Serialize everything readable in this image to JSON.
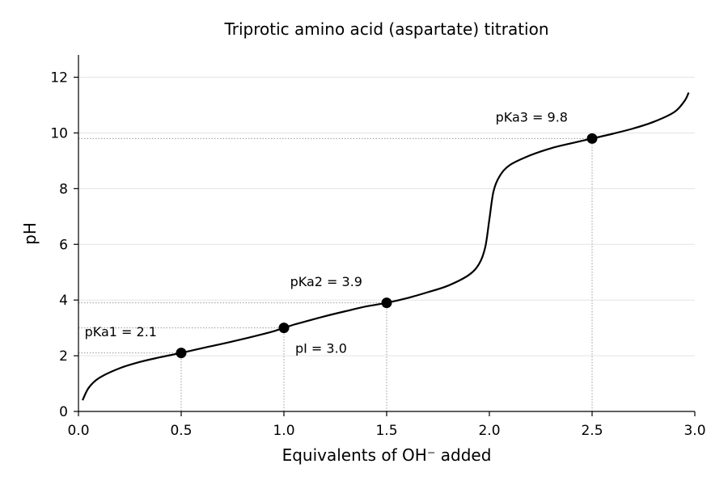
{
  "chart_data": {
    "type": "line",
    "title": "Triprotic amino acid (aspartate) titration",
    "xlabel": "Equivalents of OH⁻ added",
    "ylabel": "pH",
    "xlim": [
      0,
      3
    ],
    "ylim": [
      0,
      12.8
    ],
    "xticks": [
      "0.0",
      "0.5",
      "1.0",
      "1.5",
      "2.0",
      "2.5",
      "3.0"
    ],
    "yticks": [
      "0",
      "2",
      "4",
      "6",
      "8",
      "10",
      "12"
    ],
    "grid": "horizontal",
    "line_color": "#000000",
    "series": [
      {
        "x": [
          0.02,
          0.05,
          0.1,
          0.2,
          0.3,
          0.4,
          0.5,
          0.6,
          0.7,
          0.8,
          0.9,
          0.95,
          1.0,
          1.05,
          1.1,
          1.2,
          1.3,
          1.4,
          1.5,
          1.6,
          1.7,
          1.8,
          1.9,
          1.95,
          1.98,
          2.0,
          2.02,
          2.05,
          2.1,
          2.2,
          2.3,
          2.4,
          2.5,
          2.6,
          2.7,
          2.8,
          2.9,
          2.95,
          2.97
        ],
        "y": [
          0.4,
          0.85,
          1.2,
          1.55,
          1.78,
          1.95,
          2.1,
          2.27,
          2.43,
          2.6,
          2.78,
          2.88,
          3.0,
          3.12,
          3.22,
          3.42,
          3.6,
          3.77,
          3.9,
          4.07,
          4.28,
          4.52,
          4.9,
          5.3,
          5.9,
          6.9,
          7.9,
          8.45,
          8.85,
          9.2,
          9.45,
          9.63,
          9.8,
          9.97,
          10.16,
          10.4,
          10.75,
          11.15,
          11.45
        ]
      }
    ],
    "points": [
      {
        "x": 0.5,
        "y": 2.1
      },
      {
        "x": 1.0,
        "y": 3.0
      },
      {
        "x": 1.5,
        "y": 3.9
      },
      {
        "x": 2.5,
        "y": 9.8
      }
    ],
    "annotations": [
      {
        "text": "pKa1 = 2.1",
        "x": 0.03,
        "y": 2.7
      },
      {
        "text": "pI = 3.0",
        "x": 1.055,
        "y": 2.1
      },
      {
        "text": "pKa2 = 3.9",
        "x": 1.03,
        "y": 4.5
      },
      {
        "text": "pKa3 = 9.8",
        "x": 2.03,
        "y": 10.4
      }
    ]
  }
}
